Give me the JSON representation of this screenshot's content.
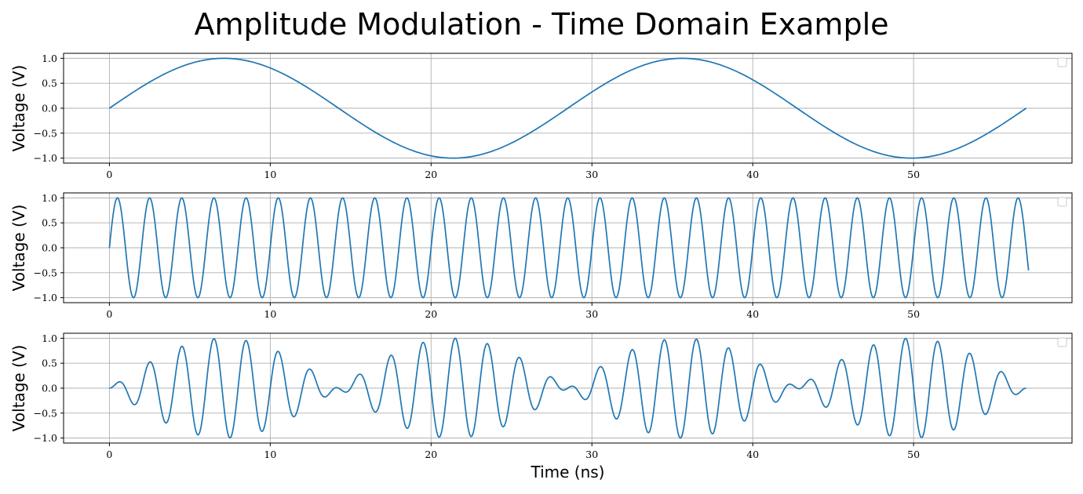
{
  "figure": {
    "title": "Amplitude Modulation - Time Domain Example"
  },
  "chart_data": [
    {
      "type": "line",
      "panel": "top",
      "title": "",
      "xlabel": "",
      "ylabel": "Voltage (V)",
      "xlim": [
        -2.85,
        59.85
      ],
      "ylim": [
        -1.1,
        1.1
      ],
      "xticks": [
        0,
        10,
        20,
        30,
        40,
        50
      ],
      "yticks": [
        -1.0,
        -0.5,
        0.0,
        0.5,
        1.0
      ],
      "xtick_labels": [
        "0",
        "10",
        "20",
        "30",
        "40",
        "50"
      ],
      "ytick_labels": [
        "−1.0",
        "−0.5",
        "0.0",
        "0.5",
        "1.0"
      ],
      "grid": true,
      "legend": "upper-right (empty)",
      "color": "#1f77b4",
      "series": [
        {
          "kind": "sine",
          "amplitude": 1.0,
          "period_ns": 28.5,
          "x_start": 0,
          "x_end": 57,
          "points": [
            [
              0,
              0.0
            ],
            [
              3.5625,
              0.7071
            ],
            [
              7.125,
              1.0
            ],
            [
              10.6875,
              0.7071
            ],
            [
              14.25,
              0.0
            ],
            [
              17.8125,
              -0.7071
            ],
            [
              21.375,
              -1.0
            ],
            [
              24.9375,
              -0.7071
            ],
            [
              28.5,
              0.0
            ],
            [
              32.0625,
              0.7071
            ],
            [
              35.625,
              1.0
            ],
            [
              39.1875,
              0.7071
            ],
            [
              42.75,
              0.0
            ],
            [
              46.3125,
              -0.7071
            ],
            [
              49.875,
              -1.0
            ],
            [
              53.4375,
              -0.7071
            ],
            [
              57.0,
              0.0
            ]
          ]
        }
      ]
    },
    {
      "type": "line",
      "panel": "middle",
      "title": "",
      "xlabel": "",
      "ylabel": "Voltage (V)",
      "xlim": [
        -2.85,
        59.85
      ],
      "ylim": [
        -1.1,
        1.1
      ],
      "xticks": [
        0,
        10,
        20,
        30,
        40,
        50
      ],
      "yticks": [
        -1.0,
        -0.5,
        0.0,
        0.5,
        1.0
      ],
      "xtick_labels": [
        "0",
        "10",
        "20",
        "30",
        "40",
        "50"
      ],
      "ytick_labels": [
        "−1.0",
        "−0.5",
        "0.0",
        "0.5",
        "1.0"
      ],
      "grid": true,
      "legend": "upper-right (empty)",
      "color": "#1f77b4",
      "series": [
        {
          "kind": "sine",
          "amplitude": 1.0,
          "period_ns": 2.0,
          "x_start": 0,
          "x_end": 57.15,
          "points": [
            [
              0,
              0.0
            ],
            [
              0.5,
              1.0
            ],
            [
              1.0,
              0.0
            ],
            [
              1.5,
              -1.0
            ],
            [
              2.0,
              0.0
            ],
            [
              2.5,
              1.0
            ],
            [
              10.5,
              1.0
            ],
            [
              11.5,
              -1.0
            ],
            [
              20.5,
              1.0
            ],
            [
              21.5,
              -1.0
            ],
            [
              30.5,
              1.0
            ],
            [
              31.5,
              -1.0
            ],
            [
              40.5,
              1.0
            ],
            [
              41.5,
              -1.0
            ],
            [
              50.5,
              1.0
            ],
            [
              51.5,
              -1.0
            ],
            [
              56.5,
              1.0
            ],
            [
              57.15,
              -0.43
            ]
          ]
        }
      ]
    },
    {
      "type": "line",
      "panel": "bottom",
      "title": "",
      "xlabel": "Time (ns)",
      "ylabel": "Voltage (V)",
      "xlim": [
        -2.85,
        59.85
      ],
      "ylim": [
        -1.1,
        1.1
      ],
      "xticks": [
        0,
        10,
        20,
        30,
        40,
        50
      ],
      "yticks": [
        -1.0,
        -0.5,
        0.0,
        0.5,
        1.0
      ],
      "xtick_labels": [
        "0",
        "10",
        "20",
        "30",
        "40",
        "50"
      ],
      "ytick_labels": [
        "−1.0",
        "−0.5",
        "0.0",
        "0.5",
        "1.0"
      ],
      "grid": true,
      "legend": "upper-right (empty)",
      "color": "#1f77b4",
      "series": [
        {
          "kind": "product",
          "description_of_factors": [
            "sine period 28.5 ns",
            "sine period 2.0 ns"
          ],
          "x_start": 0,
          "x_end": 57,
          "points": [
            [
              0,
              0.0
            ],
            [
              0.6,
              0.13
            ],
            [
              1.5,
              -0.32
            ],
            [
              2.5,
              0.53
            ],
            [
              3.5,
              -0.7
            ],
            [
              4.5,
              0.83
            ],
            [
              5.5,
              -0.93
            ],
            [
              6.5,
              0.99
            ],
            [
              7.5,
              -0.99
            ],
            [
              8.5,
              0.95
            ],
            [
              9.5,
              -0.87
            ],
            [
              10.5,
              0.74
            ],
            [
              11.5,
              -0.57
            ],
            [
              12.5,
              0.38
            ],
            [
              13.5,
              -0.16
            ],
            [
              14.5,
              0.03
            ],
            [
              15.5,
              0.27
            ],
            [
              16.5,
              -0.47
            ],
            [
              17.5,
              0.65
            ],
            [
              18.5,
              -0.79
            ],
            [
              19.5,
              0.91
            ],
            [
              20.5,
              -0.97
            ],
            [
              21.5,
              1.0
            ],
            [
              22.5,
              -0.98
            ],
            [
              23.5,
              0.89
            ],
            [
              24.5,
              -0.78
            ],
            [
              25.5,
              0.62
            ],
            [
              26.5,
              -0.43
            ],
            [
              27.5,
              0.22
            ],
            [
              28.5,
              0.0
            ],
            [
              29.5,
              -0.19
            ],
            [
              30.5,
              0.41
            ],
            [
              31.5,
              -0.6
            ],
            [
              32.5,
              0.76
            ],
            [
              33.5,
              -0.88
            ],
            [
              34.5,
              0.96
            ],
            [
              35.5,
              -1.0
            ],
            [
              36.5,
              0.98
            ],
            [
              37.5,
              -0.92
            ],
            [
              38.5,
              0.81
            ],
            [
              39.5,
              -0.66
            ],
            [
              40.5,
              0.5
            ],
            [
              41.5,
              -0.3
            ],
            [
              42.5,
              0.09
            ],
            [
              43.5,
              0.15
            ],
            [
              44.5,
              -0.34
            ],
            [
              45.5,
              0.54
            ],
            [
              46.5,
              -0.71
            ],
            [
              47.5,
              0.85
            ],
            [
              48.5,
              -0.94
            ],
            [
              49.5,
              0.99
            ],
            [
              50.5,
              -0.99
            ],
            [
              51.5,
              0.94
            ],
            [
              52.5,
              -0.85
            ],
            [
              53.5,
              0.71
            ],
            [
              54.5,
              -0.54
            ],
            [
              55.5,
              0.36
            ],
            [
              56.5,
              -0.1
            ],
            [
              57.0,
              0.0
            ]
          ]
        }
      ]
    }
  ]
}
